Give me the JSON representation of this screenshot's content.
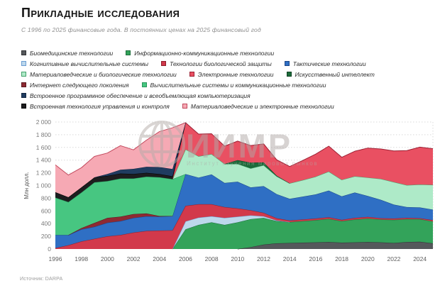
{
  "header": {
    "title": "Прикладные исследования",
    "subtitle": "С 1996 по 2025 финансовые года. В постоянных ценах на 2025 финансовый год"
  },
  "source": "Источник: DARPA",
  "watermark": {
    "title": "ИИМР",
    "subtitle": "Институт изучения мировых рынков"
  },
  "chart_data": {
    "type": "area",
    "stacked": true,
    "title": "Прикладные исследования",
    "xlabel": "",
    "ylabel": "Млн долл.",
    "ylim": [
      0,
      2000
    ],
    "ytick_step": 200,
    "grid": true,
    "legend_position": "top",
    "x": [
      1996,
      1997,
      1998,
      1999,
      2000,
      2001,
      2002,
      2003,
      2004,
      2005,
      2006,
      2007,
      2008,
      2009,
      2010,
      2011,
      2012,
      2013,
      2014,
      2015,
      2016,
      2017,
      2018,
      2019,
      2020,
      2021,
      2022,
      2023,
      2024,
      2025
    ],
    "xticks": [
      1996,
      1998,
      2000,
      2002,
      2004,
      2006,
      2008,
      2010,
      2012,
      2014,
      2016,
      2018,
      2020,
      2022,
      2024
    ],
    "series": [
      {
        "id": "biomed",
        "name": "Биомедицинские технологии",
        "fill": "#55585b",
        "stroke": "#2e3032",
        "values": [
          0,
          0,
          0,
          0,
          0,
          0,
          0,
          0,
          0,
          0,
          0,
          0,
          0,
          0,
          0,
          30,
          70,
          90,
          95,
          100,
          105,
          110,
          100,
          105,
          110,
          105,
          95,
          110,
          115,
          90
        ]
      },
      {
        "id": "ict",
        "name": "Информационно-коммуникационные технологии",
        "fill": "#33a35a",
        "stroke": "#1e6e3c",
        "values": [
          0,
          0,
          0,
          0,
          0,
          0,
          0,
          0,
          0,
          0,
          310,
          380,
          420,
          380,
          420,
          440,
          420,
          350,
          330,
          340,
          350,
          365,
          340,
          360,
          370,
          360,
          365,
          360,
          355,
          345
        ]
      },
      {
        "id": "cognitive",
        "name": "Когнитивные вычислительные системы",
        "fill": "#bdd8ec",
        "stroke": "#6b9cd1",
        "values": [
          0,
          0,
          0,
          0,
          0,
          0,
          0,
          0,
          0,
          0,
          125,
          115,
          95,
          110,
          90,
          60,
          25,
          10,
          0,
          0,
          0,
          0,
          0,
          0,
          0,
          0,
          0,
          0,
          0,
          0
        ]
      },
      {
        "id": "biodefense",
        "name": "Технологии биологической защиты",
        "fill": "#d2394b",
        "stroke": "#8c1f2b",
        "values": [
          15,
          60,
          120,
          160,
          200,
          220,
          260,
          285,
          290,
          295,
          245,
          210,
          190,
          170,
          130,
          80,
          55,
          35,
          25,
          25,
          25,
          25,
          20,
          25,
          25,
          20,
          20,
          20,
          15,
          20
        ]
      },
      {
        "id": "tactical",
        "name": "Тактические технологии",
        "fill": "#2f6fc4",
        "stroke": "#1b4687",
        "values": [
          205,
          160,
          190,
          190,
          215,
          220,
          230,
          230,
          220,
          225,
          500,
          420,
          470,
          380,
          420,
          360,
          420,
          380,
          340,
          360,
          380,
          420,
          370,
          400,
          330,
          290,
          220,
          170,
          170,
          165
        ]
      },
      {
        "id": "nextgen_internet",
        "name": "Интернет следующего поколения",
        "fill": "#8e2a33",
        "stroke": "#5a151c",
        "values": [
          0,
          0,
          20,
          60,
          75,
          70,
          60,
          45,
          10,
          0,
          0,
          0,
          0,
          0,
          0,
          0,
          0,
          0,
          0,
          0,
          0,
          0,
          0,
          0,
          0,
          0,
          0,
          0,
          0,
          0
        ]
      },
      {
        "id": "comp_comm",
        "name": "Вычислительные системы и коммуникационные технологии",
        "fill": "#47c681",
        "stroke": "#28955a",
        "values": [
          590,
          520,
          560,
          640,
          580,
          600,
          560,
          580,
          610,
          580,
          0,
          0,
          0,
          0,
          0,
          0,
          0,
          0,
          0,
          0,
          0,
          0,
          0,
          0,
          0,
          0,
          0,
          0,
          0,
          0
        ]
      },
      {
        "id": "mat_bio",
        "name": "Материаловедческие и биологические технологии",
        "fill": "#aeeac8",
        "stroke": "#45a06b",
        "values": [
          0,
          0,
          0,
          0,
          0,
          0,
          0,
          0,
          0,
          0,
          390,
          335,
          320,
          300,
          280,
          300,
          330,
          280,
          245,
          260,
          280,
          300,
          260,
          255,
          290,
          330,
          355,
          345,
          360,
          390
        ]
      },
      {
        "id": "ai",
        "name": "Искусственный интеллект",
        "fill": "#1c6b3a",
        "stroke": "#0e4223",
        "values": [
          0,
          0,
          0,
          0,
          0,
          0,
          0,
          0,
          0,
          0,
          0,
          0,
          0,
          0,
          60,
          90,
          45,
          10,
          0,
          0,
          0,
          0,
          0,
          0,
          0,
          0,
          0,
          0,
          0,
          0
        ]
      },
      {
        "id": "electronics",
        "name": "Электронные технологии",
        "fill": "#e95062",
        "stroke": "#9c2134",
        "values": [
          0,
          0,
          0,
          0,
          0,
          0,
          0,
          0,
          0,
          0,
          420,
          350,
          320,
          280,
          300,
          270,
          290,
          250,
          265,
          310,
          355,
          400,
          355,
          395,
          465,
          470,
          490,
          545,
          590,
          570
        ]
      },
      {
        "id": "embedded_control",
        "name": "Встроенная технология управления и контроля",
        "fill": "#1d1d1f",
        "stroke": "#000000",
        "values": [
          85,
          75,
          80,
          78,
          82,
          78,
          72,
          60,
          50,
          45,
          0,
          0,
          0,
          0,
          0,
          0,
          0,
          0,
          0,
          0,
          0,
          0,
          0,
          0,
          0,
          0,
          0,
          0,
          0,
          0
        ]
      },
      {
        "id": "embedded_software",
        "name": "Встроенное программное обеспечение и всеобъемлющая компьютеризация",
        "fill": "#203c60",
        "stroke": "#122640",
        "values": [
          0,
          0,
          0,
          0,
          30,
          60,
          80,
          95,
          110,
          115,
          0,
          0,
          0,
          0,
          0,
          0,
          0,
          0,
          0,
          0,
          0,
          0,
          0,
          0,
          0,
          0,
          0,
          0,
          0,
          0
        ]
      },
      {
        "id": "mat_elec",
        "name": "Материаловедческие и электронные технологии",
        "fill": "#f6a9b4",
        "stroke": "#c2485c",
        "values": [
          430,
          350,
          310,
          330,
          330,
          380,
          300,
          420,
          560,
          650,
          0,
          0,
          0,
          0,
          0,
          0,
          0,
          0,
          0,
          0,
          0,
          0,
          0,
          0,
          0,
          0,
          0,
          0,
          0,
          0
        ]
      }
    ],
    "legend_rows": [
      [
        "biomed",
        "ict"
      ],
      [
        "cognitive",
        "biodefense",
        "tactical"
      ],
      [
        "mat_bio",
        "electronics",
        "ai"
      ],
      [
        "nextgen_internet",
        "comp_comm"
      ],
      [
        "embedded_software"
      ],
      [
        "embedded_control",
        "mat_elec"
      ]
    ]
  }
}
